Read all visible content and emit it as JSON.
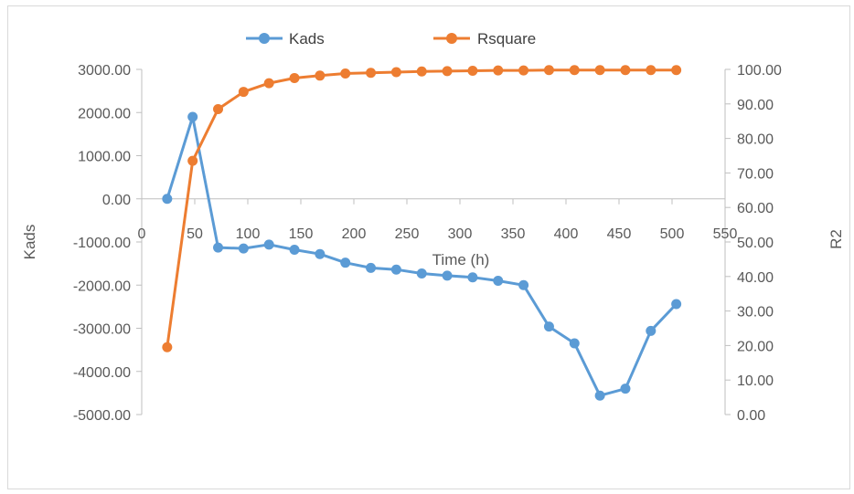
{
  "chart_data": {
    "type": "line",
    "xlabel": "Time (h)",
    "ylabel_left": "Kads",
    "ylabel_right": "R2",
    "x_ticks": [
      "0",
      "50",
      "100",
      "150",
      "200",
      "250",
      "300",
      "350",
      "400",
      "450",
      "500",
      "550"
    ],
    "y_left_ticks": [
      "3000.00",
      "2000.00",
      "1000.00",
      "0.00",
      "-1000.00",
      "-2000.00",
      "-3000.00",
      "-4000.00",
      "-5000.00"
    ],
    "y_right_ticks": [
      "100.00",
      "90.00",
      "80.00",
      "70.00",
      "60.00",
      "50.00",
      "40.00",
      "30.00",
      "20.00",
      "10.00",
      "0.00"
    ],
    "xlim": [
      0,
      550
    ],
    "ylim_left": [
      -5000,
      3000
    ],
    "ylim_right": [
      0,
      100
    ],
    "legend_position": "top",
    "grid": false,
    "series": [
      {
        "name": "Kads",
        "axis": "left",
        "color": "#5b9bd5",
        "x": [
          24,
          48,
          72,
          96,
          120,
          144,
          168,
          192,
          216,
          240,
          264,
          288,
          312,
          336,
          360,
          384,
          408,
          432,
          456,
          480,
          504
        ],
        "y": [
          0,
          1900,
          -1130,
          -1150,
          -1060,
          -1180,
          -1280,
          -1480,
          -1600,
          -1640,
          -1730,
          -1780,
          -1820,
          -1900,
          -2000,
          -2960,
          -3350,
          -4560,
          -4400,
          -3060,
          -2440
        ]
      },
      {
        "name": "Rsquare",
        "axis": "right",
        "color": "#ed7d31",
        "x": [
          24,
          48,
          72,
          96,
          120,
          144,
          168,
          192,
          216,
          240,
          264,
          288,
          312,
          336,
          360,
          384,
          408,
          432,
          456,
          480,
          504
        ],
        "y": [
          19.5,
          73.5,
          88.5,
          93.5,
          96.0,
          97.5,
          98.2,
          98.8,
          99.0,
          99.2,
          99.4,
          99.5,
          99.6,
          99.7,
          99.7,
          99.8,
          99.8,
          99.8,
          99.8,
          99.8,
          99.8
        ]
      }
    ]
  }
}
